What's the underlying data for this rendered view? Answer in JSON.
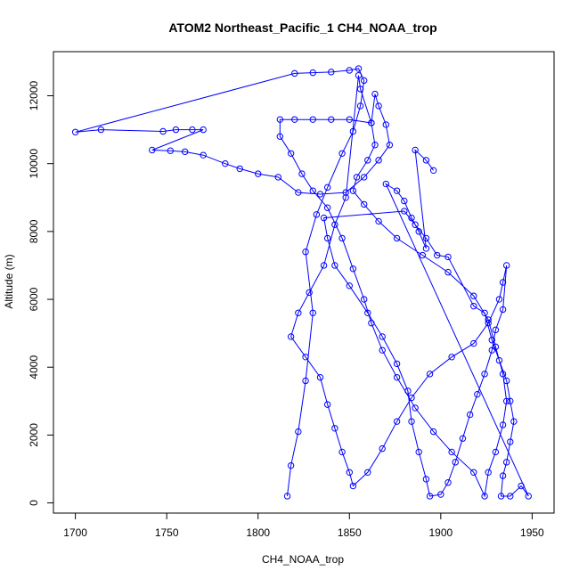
{
  "chart_data": {
    "type": "scatter",
    "title": "ATOM2 Northeast_Pacific_1 CH4_NOAA_trop",
    "xlabel": "CH4_NOAA_trop",
    "ylabel": "Altitude (m)",
    "xlim": [
      1688,
      1962
    ],
    "ylim": [
      -300,
      13300
    ],
    "x_ticks": [
      1700,
      1750,
      1800,
      1850,
      1900,
      1950
    ],
    "y_ticks": [
      0,
      2000,
      4000,
      6000,
      8000,
      10000,
      12000
    ],
    "x_tick_labels": [
      "1700",
      "1750",
      "1800",
      "1850",
      "1900",
      "1950"
    ],
    "y_tick_labels": [
      "0",
      "2000",
      "4000",
      "6000",
      "8000",
      "10000",
      "12000"
    ],
    "grid": false,
    "series": [
      {
        "color": "#0000ff",
        "marker": "open-circle",
        "connected": true,
        "points": [
          [
            1816,
            200
          ],
          [
            1818,
            1100
          ],
          [
            1822,
            2100
          ],
          [
            1826,
            3600
          ],
          [
            1830,
            5600
          ],
          [
            1826,
            7400
          ],
          [
            1832,
            8500
          ],
          [
            1838,
            9300
          ],
          [
            1846,
            10300
          ],
          [
            1852,
            10950
          ],
          [
            1856,
            11700
          ],
          [
            1858,
            12450
          ],
          [
            1855,
            12800
          ],
          [
            1850,
            12750
          ],
          [
            1840,
            12700
          ],
          [
            1830,
            12680
          ],
          [
            1820,
            12660
          ],
          [
            1700,
            10930
          ],
          [
            1714,
            11000
          ],
          [
            1748,
            10950
          ],
          [
            1755,
            11000
          ],
          [
            1764,
            11000
          ],
          [
            1770,
            11000
          ],
          [
            1742,
            10400
          ],
          [
            1752,
            10380
          ],
          [
            1760,
            10350
          ],
          [
            1770,
            10250
          ],
          [
            1782,
            10000
          ],
          [
            1790,
            9850
          ],
          [
            1800,
            9700
          ],
          [
            1811,
            9600
          ],
          [
            1822,
            9150
          ],
          [
            1834,
            9100
          ],
          [
            1848,
            9150
          ],
          [
            1858,
            9600
          ],
          [
            1866,
            10100
          ],
          [
            1872,
            10550
          ],
          [
            1870,
            11150
          ],
          [
            1866,
            11700
          ],
          [
            1864,
            12050
          ],
          [
            1862,
            11200
          ],
          [
            1850,
            11300
          ],
          [
            1840,
            11300
          ],
          [
            1830,
            11300
          ],
          [
            1820,
            11300
          ],
          [
            1812,
            11300
          ],
          [
            1812,
            10800
          ],
          [
            1818,
            10300
          ],
          [
            1824,
            9700
          ],
          [
            1830,
            9200
          ],
          [
            1838,
            8700
          ],
          [
            1846,
            7800
          ],
          [
            1852,
            6900
          ],
          [
            1858,
            6000
          ],
          [
            1862,
            5300
          ],
          [
            1868,
            4500
          ],
          [
            1876,
            3700
          ],
          [
            1886,
            2800
          ],
          [
            1896,
            2100
          ],
          [
            1906,
            1500
          ],
          [
            1918,
            900
          ],
          [
            1924,
            200
          ],
          [
            1926,
            900
          ],
          [
            1930,
            1500
          ],
          [
            1934,
            2300
          ],
          [
            1936,
            3000
          ],
          [
            1934,
            3800
          ],
          [
            1930,
            4600
          ],
          [
            1926,
            5400
          ],
          [
            1918,
            6100
          ],
          [
            1904,
            6800
          ],
          [
            1890,
            7300
          ],
          [
            1876,
            7800
          ],
          [
            1866,
            8300
          ],
          [
            1858,
            8800
          ],
          [
            1852,
            9200
          ],
          [
            1854,
            9600
          ],
          [
            1860,
            10100
          ],
          [
            1864,
            10550
          ],
          [
            1862,
            11200
          ],
          [
            1856,
            12200
          ],
          [
            1855,
            12600
          ],
          [
            1848,
            9000
          ],
          [
            1842,
            8200
          ],
          [
            1836,
            7000
          ],
          [
            1828,
            6200
          ],
          [
            1822,
            5600
          ],
          [
            1818,
            4900
          ],
          [
            1826,
            4300
          ],
          [
            1834,
            3700
          ],
          [
            1838,
            2900
          ],
          [
            1842,
            2200
          ],
          [
            1846,
            1500
          ],
          [
            1850,
            900
          ],
          [
            1852,
            500
          ],
          [
            1860,
            900
          ],
          [
            1868,
            1600
          ],
          [
            1876,
            2400
          ],
          [
            1884,
            3100
          ],
          [
            1894,
            3800
          ],
          [
            1906,
            4300
          ],
          [
            1918,
            4700
          ],
          [
            1926,
            5300
          ],
          [
            1932,
            6000
          ],
          [
            1934,
            6500
          ],
          [
            1936,
            7000
          ],
          [
            1934,
            5700
          ],
          [
            1930,
            5100
          ],
          [
            1928,
            4500
          ],
          [
            1924,
            3800
          ],
          [
            1920,
            3200
          ],
          [
            1916,
            2600
          ],
          [
            1912,
            1900
          ],
          [
            1908,
            1200
          ],
          [
            1904,
            600
          ],
          [
            1900,
            250
          ],
          [
            1894,
            200
          ],
          [
            1892,
            700
          ],
          [
            1888,
            1500
          ],
          [
            1884,
            2400
          ],
          [
            1882,
            3300
          ],
          [
            1876,
            4100
          ],
          [
            1868,
            4900
          ],
          [
            1860,
            5600
          ],
          [
            1850,
            6400
          ],
          [
            1842,
            7000
          ],
          [
            1838,
            7800
          ],
          [
            1836,
            8400
          ],
          [
            1880,
            8600
          ],
          [
            1886,
            8200
          ],
          [
            1892,
            7800
          ],
          [
            1898,
            7300
          ],
          [
            1904,
            7250
          ],
          [
            1918,
            5800
          ],
          [
            1924,
            5600
          ],
          [
            1928,
            4800
          ],
          [
            1932,
            4200
          ],
          [
            1936,
            3600
          ],
          [
            1938,
            3000
          ],
          [
            1940,
            2400
          ],
          [
            1938,
            1800
          ],
          [
            1936,
            1200
          ],
          [
            1934,
            800
          ],
          [
            1933,
            200
          ],
          [
            1938,
            200
          ],
          [
            1944,
            500
          ],
          [
            1948,
            200
          ],
          [
            1870,
            9400
          ],
          [
            1876,
            9200
          ],
          [
            1880,
            8900
          ],
          [
            1884,
            8400
          ],
          [
            1888,
            8000
          ],
          [
            1892,
            7500
          ],
          [
            1886,
            10400
          ],
          [
            1892,
            10100
          ],
          [
            1896,
            9800
          ]
        ]
      }
    ]
  }
}
